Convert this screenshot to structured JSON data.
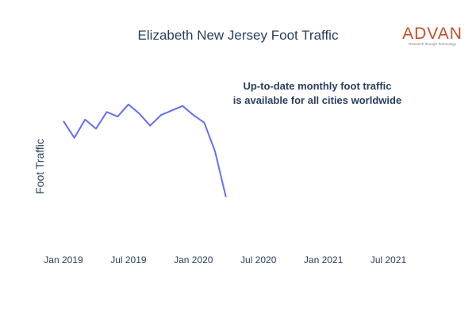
{
  "logo": {
    "word": "ADVAN",
    "tagline": "Research through Technology",
    "color": "#c0502a"
  },
  "annotation": {
    "line1": "Up-to-date monthly foot traffic",
    "line2": "is available for all cities worldwide"
  },
  "chart_data": {
    "type": "line",
    "title": "Elizabeth New Jersey Foot Traffic",
    "xlabel": "",
    "ylabel": "Foot Traffic",
    "x_ticks": [
      "Jan 2019",
      "Jul 2019",
      "Jan 2020",
      "Jul 2020",
      "Jan 2021",
      "Jul 2021"
    ],
    "y_ticks_shown": false,
    "grid": false,
    "line_color": "#636efa",
    "series": [
      {
        "x": [
          "2019-01",
          "2019-02",
          "2019-03",
          "2019-04",
          "2019-05",
          "2019-06",
          "2019-07",
          "2019-08",
          "2019-09",
          "2019-10",
          "2019-11",
          "2019-12",
          "2020-01",
          "2020-02",
          "2020-03",
          "2020-04"
        ],
        "y": [
          0.82,
          0.71,
          0.83,
          0.77,
          0.88,
          0.85,
          0.93,
          0.87,
          0.79,
          0.86,
          0.89,
          0.92,
          0.86,
          0.81,
          0.62,
          0.32
        ]
      }
    ],
    "ylim": [
      0,
      1.2
    ]
  }
}
